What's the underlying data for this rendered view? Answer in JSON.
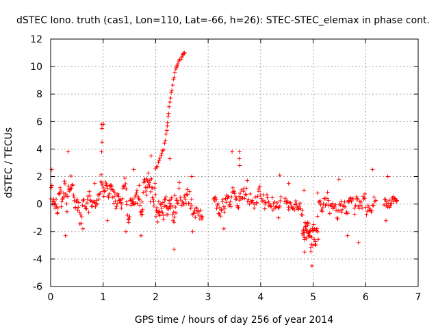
{
  "chart_data": {
    "type": "scatter",
    "title": "dSTEC Iono. truth (cas1, Lon=110, Lat=-66, h=26): STEC-STEC_elemax in phase cont.",
    "xlabel": "GPS time / hours of day 256 of year 2014",
    "ylabel": "dSTEC  / TECUs",
    "xlim": [
      0,
      7
    ],
    "ylim": [
      -6,
      12
    ],
    "x_ticks": [
      "0",
      "1",
      "2",
      "3",
      "4",
      "5",
      "6",
      "7"
    ],
    "y_ticks": [
      "-6",
      "-4",
      "-2",
      "0",
      "2",
      "4",
      "6",
      "8",
      "10",
      "12"
    ],
    "grid": true,
    "marker": "+",
    "color": "#ff0000",
    "segments": [
      {
        "x0": 0.0,
        "x1": 0.3,
        "y_mid": 0.5,
        "spread": 1.2,
        "n": 30,
        "lo": -2.3,
        "hi": 2.5
      },
      {
        "x0": 0.3,
        "x1": 0.62,
        "y_mid": 0.3,
        "spread": 1.2,
        "n": 30,
        "lo": -1.8,
        "hi": 3.8
      },
      {
        "x0": 0.62,
        "x1": 0.95,
        "y_mid": 0.1,
        "spread": 0.6,
        "n": 25,
        "lo": -0.6,
        "hi": 1.5
      },
      {
        "x0": 0.95,
        "x1": 1.2,
        "y_mid": 0.8,
        "spread": 1.1,
        "n": 25,
        "lo": -1.2,
        "hi": 5.8
      },
      {
        "x0": 1.2,
        "x1": 1.7,
        "y_mid": 0.5,
        "spread": 1.1,
        "n": 50,
        "lo": -2.0,
        "hi": 2.5
      },
      {
        "x0": 1.7,
        "x1": 2.0,
        "y_mid": 0.8,
        "spread": 1.4,
        "n": 35,
        "lo": -2.3,
        "hi": 3.5
      },
      {
        "x0": 2.0,
        "x1": 2.4,
        "y_mid": -0.3,
        "spread": 1.2,
        "n": 45,
        "lo": -3.3,
        "hi": 3.3
      },
      {
        "x0": 2.4,
        "x1": 2.9,
        "y_mid": -0.2,
        "spread": 1.0,
        "n": 40,
        "lo": -2.0,
        "hi": 2.0
      },
      {
        "x0": 3.1,
        "x1": 3.75,
        "y_mid": 0.4,
        "spread": 0.9,
        "n": 55,
        "lo": -1.8,
        "hi": 3.8
      },
      {
        "x0": 3.75,
        "x1": 4.4,
        "y_mid": 0.1,
        "spread": 0.8,
        "n": 45,
        "lo": -1.0,
        "hi": 2.1
      },
      {
        "x0": 4.45,
        "x1": 4.8,
        "y_mid": 0.1,
        "spread": 0.6,
        "n": 25,
        "lo": -0.8,
        "hi": 1.5
      },
      {
        "x0": 4.8,
        "x1": 4.95,
        "y_mid": -1.8,
        "spread": 1.0,
        "n": 25,
        "lo": -3.5,
        "hi": 1.0
      },
      {
        "x0": 4.95,
        "x1": 5.1,
        "y_mid": -2.2,
        "spread": 1.5,
        "n": 20,
        "lo": -4.5,
        "hi": 0.8
      },
      {
        "x0": 5.1,
        "x1": 5.7,
        "y_mid": -0.1,
        "spread": 0.8,
        "n": 45,
        "lo": -2.3,
        "hi": 1.8
      },
      {
        "x0": 5.7,
        "x1": 6.2,
        "y_mid": -0.1,
        "spread": 0.8,
        "n": 35,
        "lo": -2.8,
        "hi": 2.5
      },
      {
        "x0": 6.35,
        "x1": 6.6,
        "y_mid": 0.2,
        "spread": 0.6,
        "n": 22,
        "lo": -1.2,
        "hi": 2.0
      }
    ],
    "rising_arc": {
      "description": "steep rising branch",
      "points": [
        [
          2.0,
          2.5
        ],
        [
          2.05,
          3.0
        ],
        [
          2.1,
          3.6
        ],
        [
          2.15,
          4.0
        ],
        [
          2.2,
          5.0
        ],
        [
          2.23,
          6.0
        ],
        [
          2.26,
          7.0
        ],
        [
          2.3,
          8.0
        ],
        [
          2.34,
          9.0
        ],
        [
          2.38,
          9.8
        ],
        [
          2.42,
          10.2
        ],
        [
          2.48,
          10.6
        ],
        [
          2.52,
          10.9
        ],
        [
          2.55,
          11.0
        ]
      ]
    },
    "spikes": [
      {
        "x": 0.97,
        "values": [
          5.8,
          5.5,
          4.5,
          3.8
        ]
      },
      {
        "x": 3.6,
        "values": [
          3.8,
          3.3,
          2.8
        ]
      }
    ]
  }
}
